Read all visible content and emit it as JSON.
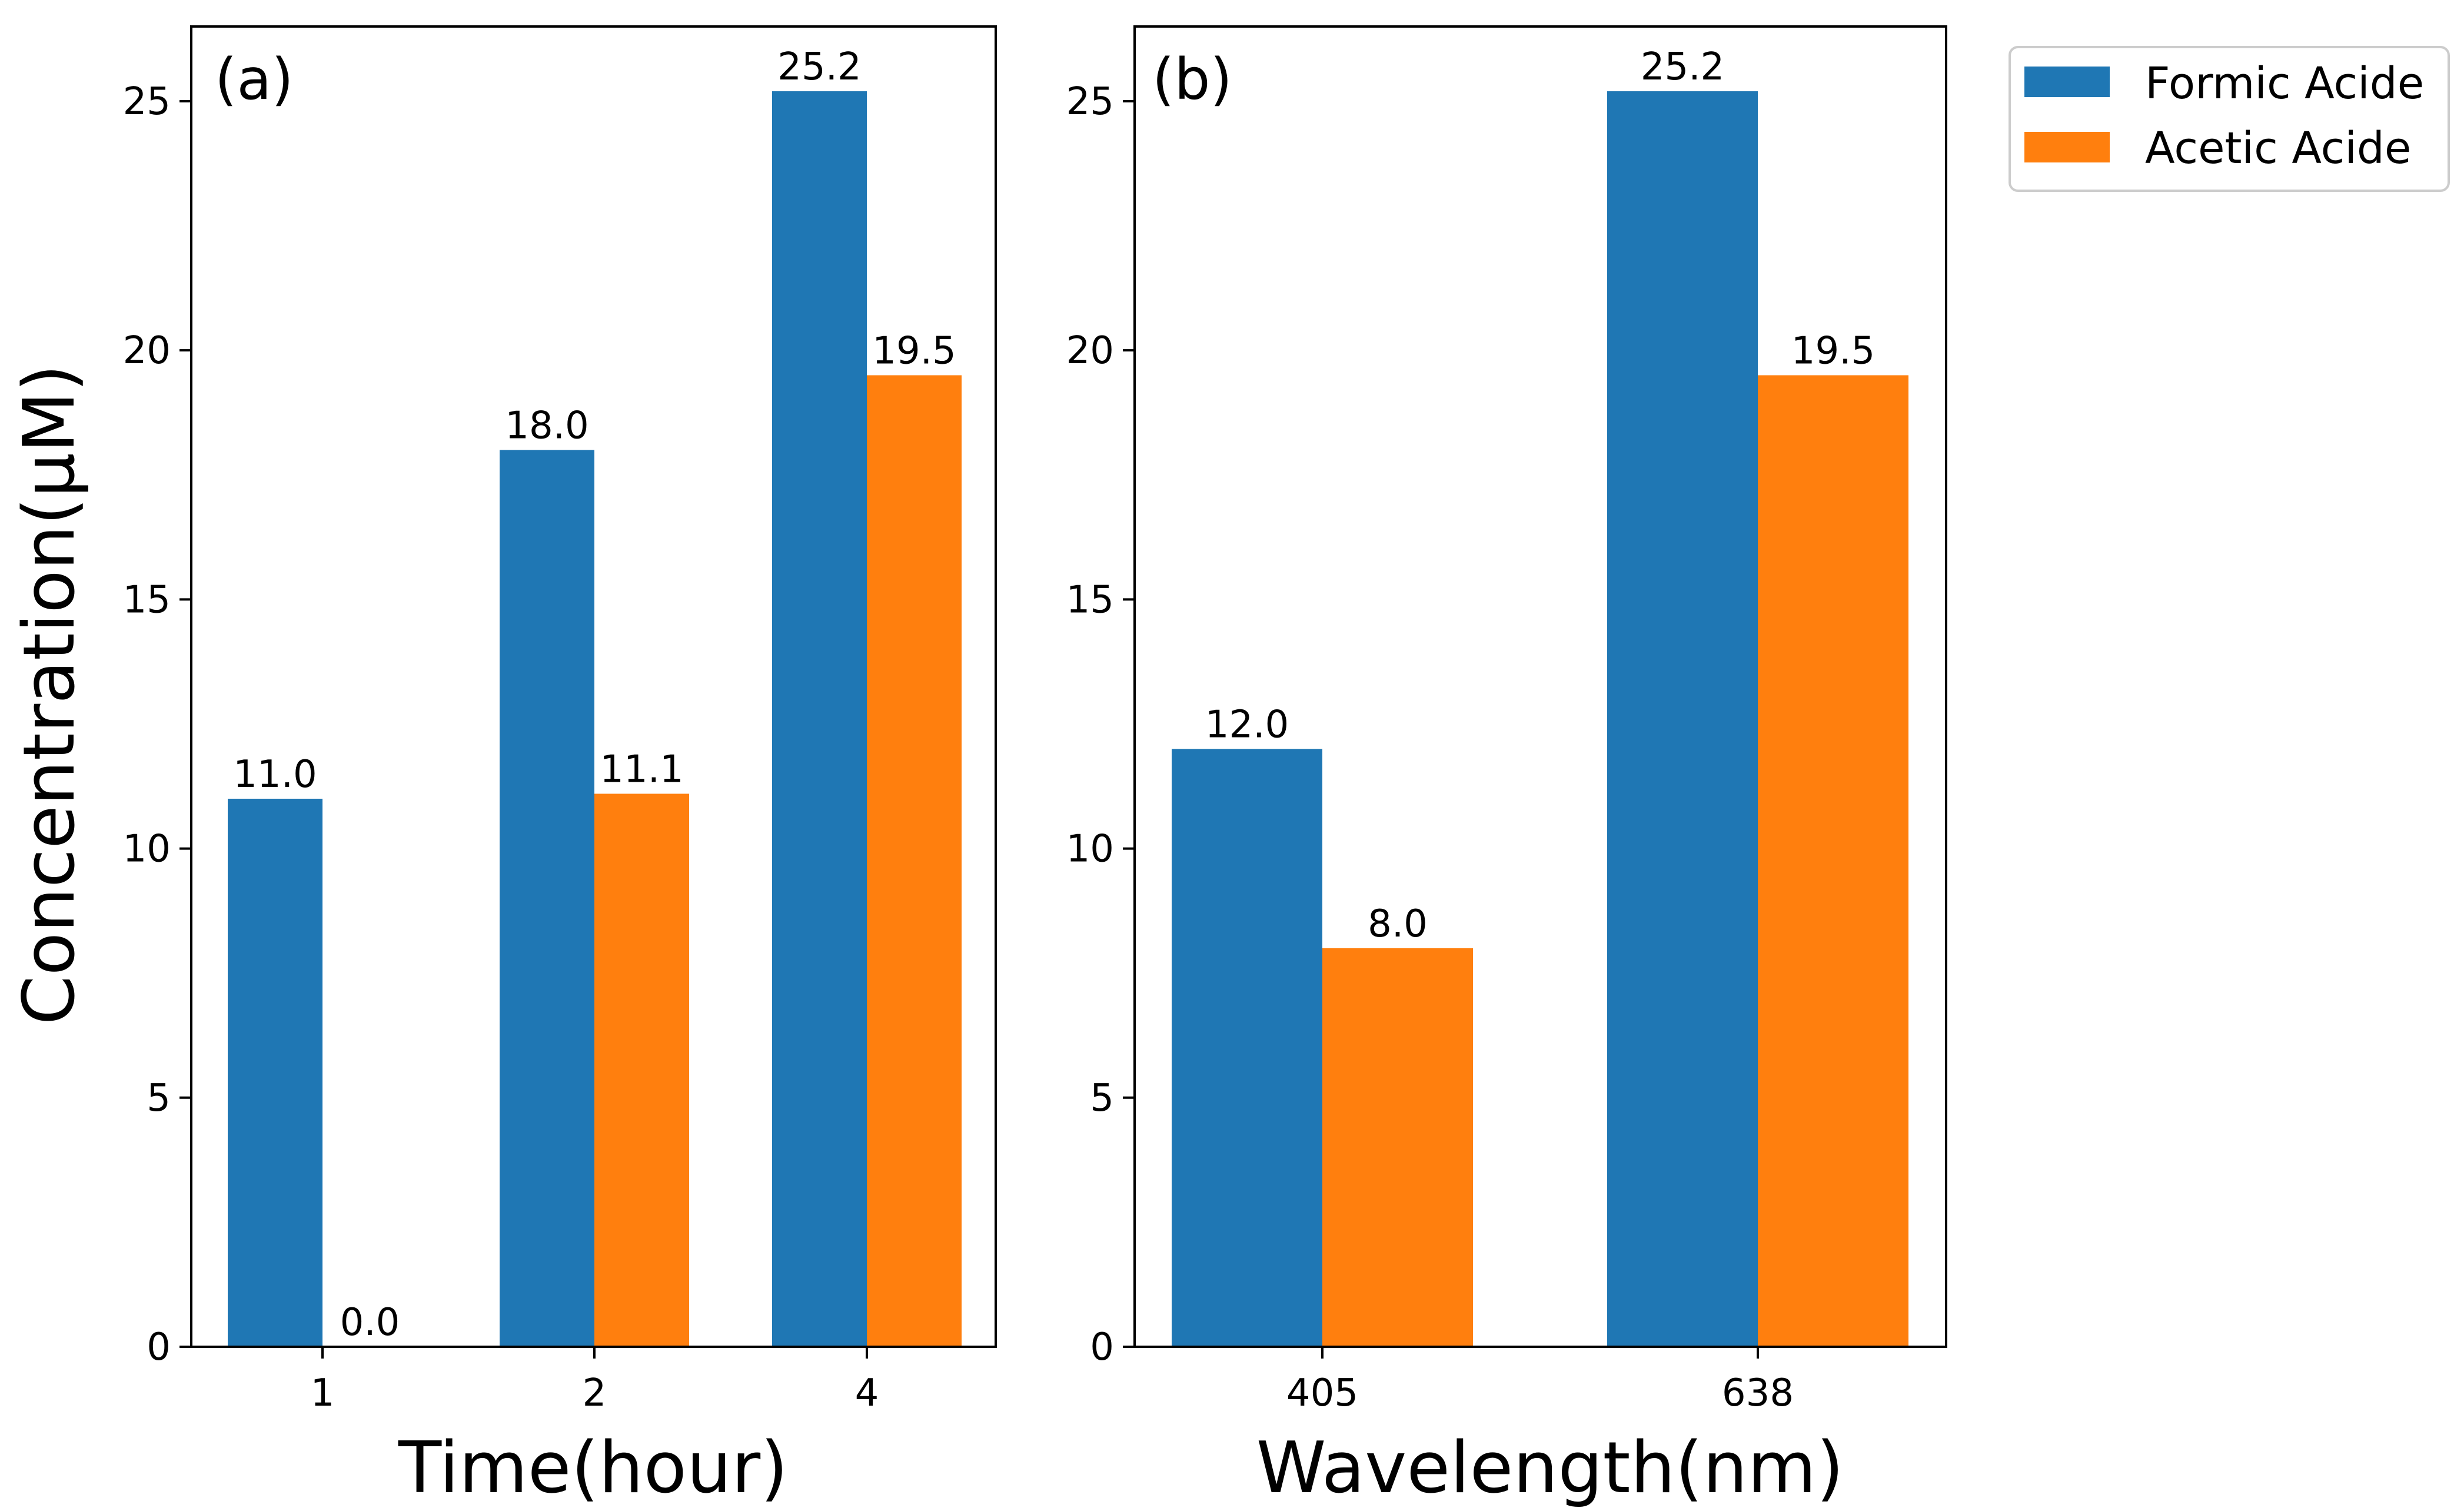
{
  "chart_data": [
    {
      "type": "bar",
      "panel_label": "(a)",
      "categories": [
        "1",
        "2",
        "4"
      ],
      "xlabel": "Time(hour)",
      "ylabel": "Concentration(μM)",
      "ylim": [
        0,
        26.5
      ],
      "yticks": [
        0,
        5,
        10,
        15,
        20,
        25
      ],
      "series": [
        {
          "name": "Formic Acide",
          "color": "#1f77b4",
          "values": [
            11.0,
            18.0,
            25.2
          ],
          "labels": [
            "11.0",
            "18.0",
            "25.2"
          ]
        },
        {
          "name": "Acetic Acide",
          "color": "#ff7f0e",
          "values": [
            0.0,
            11.1,
            19.5
          ],
          "labels": [
            "0.0",
            "11.1",
            "19.5"
          ]
        }
      ]
    },
    {
      "type": "bar",
      "panel_label": "(b)",
      "categories": [
        "405",
        "638"
      ],
      "xlabel": "Wavelength(nm)",
      "ylim": [
        0,
        26.5
      ],
      "yticks": [
        0,
        5,
        10,
        15,
        20,
        25
      ],
      "series": [
        {
          "name": "Formic Acide",
          "color": "#1f77b4",
          "values": [
            12.0,
            25.2
          ],
          "labels": [
            "12.0",
            "25.2"
          ]
        },
        {
          "name": "Acetic Acide",
          "color": "#ff7f0e",
          "values": [
            8.0,
            19.5
          ],
          "labels": [
            "8.0",
            "19.5"
          ]
        }
      ]
    }
  ],
  "legend": {
    "position": "upper-right",
    "items": [
      {
        "label": "Formic Acide",
        "color": "#1f77b4"
      },
      {
        "label": "Acetic Acide",
        "color": "#ff7f0e"
      }
    ]
  }
}
